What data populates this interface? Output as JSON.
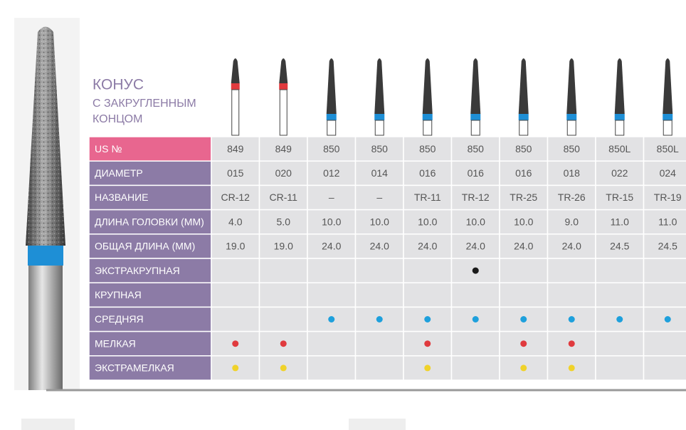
{
  "title": {
    "line1": "КОНУС",
    "line2": "С ЗАКРУГЛЕННЫМ",
    "line3": "КОНЦОМ"
  },
  "table": {
    "header_label": "US №",
    "header": [
      "849",
      "849",
      "850",
      "850",
      "850",
      "850",
      "850",
      "850",
      "850L",
      "850L"
    ],
    "bur_band_colors": [
      "#e03a3e",
      "#e03a3e",
      "#1e8fd6",
      "#1e8fd6",
      "#1e8fd6",
      "#1e8fd6",
      "#1e8fd6",
      "#1e8fd6",
      "#1e8fd6",
      "#1e8fd6"
    ],
    "rows": [
      {
        "label": "ДИАМЕТР",
        "cells": [
          "015",
          "020",
          "012",
          "014",
          "016",
          "016",
          "016",
          "018",
          "022",
          "024"
        ]
      },
      {
        "label": "НАЗВАНИЕ",
        "cells": [
          "CR-12",
          "CR-11",
          "–",
          "–",
          "TR-11",
          "TR-12",
          "TR-25",
          "TR-26",
          "TR-15",
          "TR-19"
        ]
      },
      {
        "label": "ДЛИНА ГОЛОВКИ (ММ)",
        "cells": [
          "4.0",
          "5.0",
          "10.0",
          "10.0",
          "10.0",
          "10.0",
          "10.0",
          "9.0",
          "11.0",
          "11.0"
        ]
      },
      {
        "label": "ОБЩАЯ ДЛИНА (ММ)",
        "cells": [
          "19.0",
          "19.0",
          "24.0",
          "24.0",
          "24.0",
          "24.0",
          "24.0",
          "24.0",
          "24.5",
          "24.5"
        ]
      }
    ],
    "grit_rows": [
      {
        "label": "ЭКСТРАКРУПНАЯ",
        "color": "#1a1a1a",
        "marks": [
          false,
          false,
          false,
          false,
          false,
          true,
          false,
          false,
          false,
          false
        ]
      },
      {
        "label": "КРУПНАЯ",
        "color": "#444444",
        "marks": [
          false,
          false,
          false,
          false,
          false,
          false,
          false,
          false,
          false,
          false
        ]
      },
      {
        "label": "СРЕДНЯЯ",
        "color": "#1ea0dc",
        "marks": [
          false,
          false,
          true,
          true,
          true,
          true,
          true,
          true,
          true,
          true
        ]
      },
      {
        "label": "МЕЛКАЯ",
        "color": "#e03a3e",
        "marks": [
          true,
          true,
          false,
          false,
          true,
          false,
          true,
          true,
          false,
          false
        ]
      },
      {
        "label": "ЭКСТРАМЕЛКАЯ",
        "color": "#f0d22a",
        "marks": [
          true,
          true,
          false,
          false,
          true,
          false,
          true,
          true,
          false,
          false
        ]
      }
    ]
  }
}
